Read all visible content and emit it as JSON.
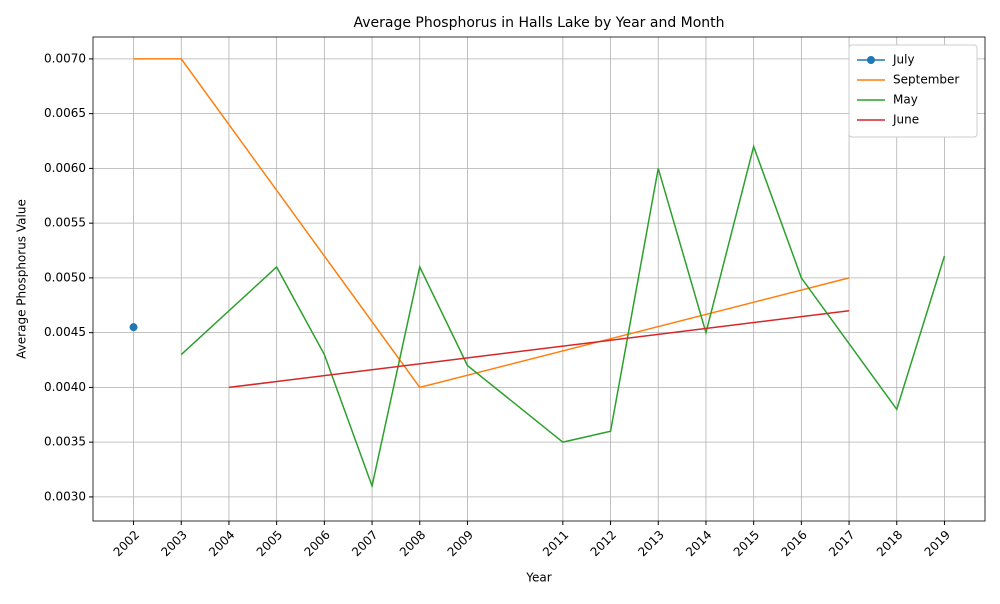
{
  "chart_data": {
    "type": "line",
    "title": "Average Phosphorus in Halls Lake by Year and Month",
    "x_label": "Year",
    "y_label": "Average Phosphorus Value",
    "series": [
      {
        "name": "July",
        "color": "#1f77b4",
        "marker": true,
        "x": [
          2002
        ],
        "values": [
          0.00455
        ]
      },
      {
        "name": "September",
        "color": "#ff7f0e",
        "marker": false,
        "x": [
          2002,
          2003,
          2008,
          2017
        ],
        "values": [
          0.007,
          0.007,
          0.004,
          0.005
        ]
      },
      {
        "name": "May",
        "color": "#2ca02c",
        "marker": false,
        "x": [
          2003,
          2005,
          2006,
          2007,
          2008,
          2009,
          2011,
          2012,
          2013,
          2014,
          2015,
          2016,
          2018,
          2019
        ],
        "values": [
          0.0043,
          0.0051,
          0.0043,
          0.0031,
          0.0051,
          0.0042,
          0.0035,
          0.0036,
          0.006,
          0.0045,
          0.0062,
          0.005,
          0.0038,
          0.0052
        ]
      },
      {
        "name": "June",
        "color": "#d62728",
        "marker": false,
        "x": [
          2004,
          2017
        ],
        "values": [
          0.004,
          0.0047
        ]
      }
    ],
    "xlim": [
      2001.15,
      2019.85
    ],
    "xticks": [
      2002,
      2003,
      2004,
      2005,
      2006,
      2007,
      2008,
      2009,
      2011,
      2012,
      2013,
      2014,
      2015,
      2016,
      2017,
      2018,
      2019
    ],
    "ylim": [
      0.00278,
      0.0072
    ],
    "yticks": [
      {
        "value": 0.003,
        "label": "0.0030"
      },
      {
        "value": 0.0035,
        "label": "0.0035"
      },
      {
        "value": 0.004,
        "label": "0.0040"
      },
      {
        "value": 0.0045,
        "label": "0.0045"
      },
      {
        "value": 0.005,
        "label": "0.0050"
      },
      {
        "value": 0.0055,
        "label": "0.0055"
      },
      {
        "value": 0.006,
        "label": "0.0060"
      },
      {
        "value": 0.0065,
        "label": "0.0065"
      },
      {
        "value": 0.007,
        "label": "0.0070"
      }
    ],
    "grid": true,
    "legend": "upper right"
  }
}
